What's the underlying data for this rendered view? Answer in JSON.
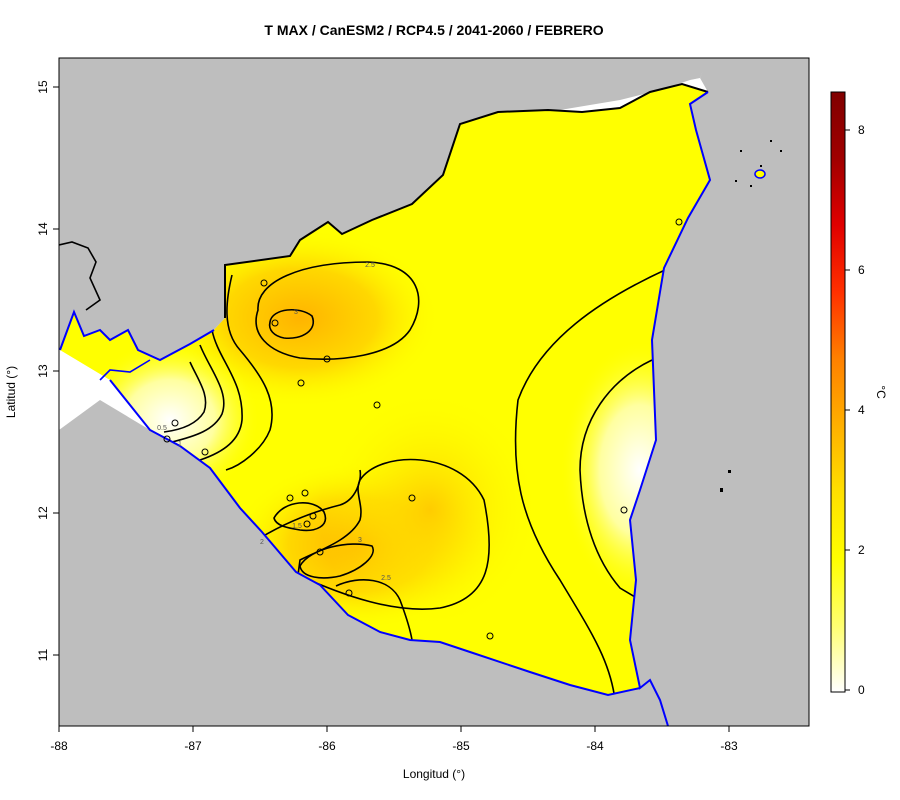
{
  "title": "T MAX / CanESM2 / RCP4.5 / 2041-2060 / FEBRERO",
  "xlabel": "Longitud (°)",
  "ylabel": "Latitud (°)",
  "colorbar": {
    "unit": "°C",
    "ticks": [
      "0",
      "2",
      "4",
      "6",
      "8"
    ],
    "colors": [
      "#ffffff",
      "#ffff70",
      "#ffff00",
      "#ffe000",
      "#ffb000",
      "#ff8000",
      "#ff3000",
      "#e00000",
      "#a00000",
      "#800000"
    ]
  },
  "axes": {
    "x_ticks": [
      "-88",
      "-87",
      "-86",
      "-85",
      "-84",
      "-83"
    ],
    "y_ticks": [
      "11",
      "12",
      "13",
      "14",
      "15"
    ]
  },
  "contour_labels": [
    "2.5",
    "3",
    "0.5",
    "1",
    "1.5",
    "2",
    "3",
    "2.5"
  ],
  "colors": {
    "land_gray": "#bebebe",
    "coast_blue": "#0000ff",
    "field_yellow": "#ffff00"
  }
}
